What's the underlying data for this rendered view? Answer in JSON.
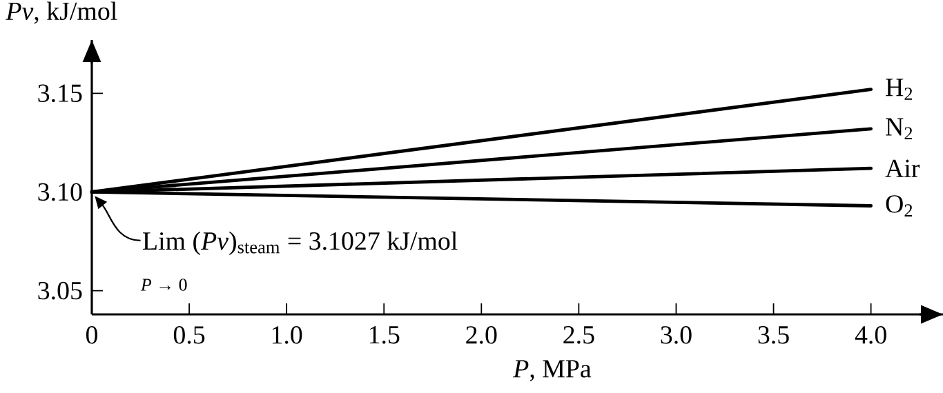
{
  "chart_data": {
    "type": "line",
    "xlabel": "*P*, MPa",
    "ylabel": "*Pv*, kJ/mol",
    "x": [
      0,
      4.0
    ],
    "series": [
      {
        "name": "H$_{2}$",
        "color": "#000000",
        "values": [
          3.1,
          3.152
        ]
      },
      {
        "name": "N$_{2}$",
        "color": "#000000",
        "values": [
          3.1,
          3.132
        ]
      },
      {
        "name": "Air",
        "color": "#000000",
        "values": [
          3.1,
          3.112
        ]
      },
      {
        "name": "O$_{2}$",
        "color": "#000000",
        "values": [
          3.1,
          3.093
        ]
      }
    ],
    "xlim": [
      0,
      4.37
    ],
    "ylim": [
      3.038,
      3.177
    ],
    "xticks": [
      0,
      0.5,
      {
        "value": 1,
        "label": "1.0"
      },
      1.5,
      {
        "value": 2,
        "label": "2.0"
      },
      2.5,
      {
        "value": 3,
        "label": "3.0"
      },
      3.5,
      {
        "value": 4,
        "label": "4.0"
      }
    ],
    "yticks": [
      3.05,
      {
        "value": 3.1,
        "label": "3.10"
      },
      3.15
    ],
    "annotations": [
      "Lim (*Pv*)$_{steam}$ = 3.1027 kJ/mol",
      "*P* → 0"
    ],
    "grid": false,
    "legend": false,
    "marker": "none",
    "line_style": "solid"
  }
}
